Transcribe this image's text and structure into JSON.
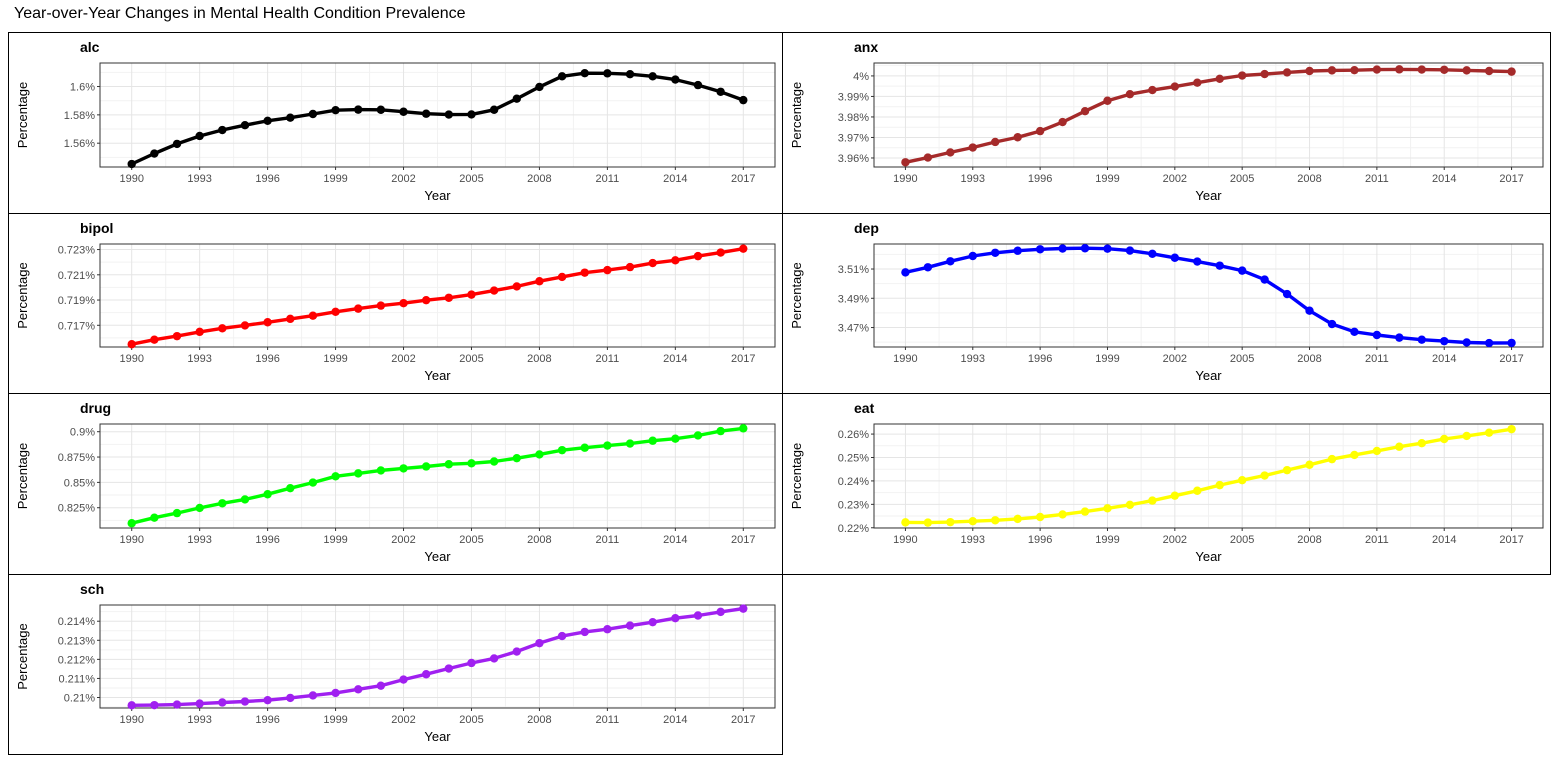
{
  "title": "Year-over-Year Changes in Mental Health Condition Prevalence",
  "chart_data": [
    {
      "type": "line",
      "name": "alc",
      "color": "#000000",
      "x": [
        1990,
        1991,
        1992,
        1993,
        1994,
        1995,
        1996,
        1997,
        1998,
        1999,
        2000,
        2001,
        2002,
        2003,
        2004,
        2005,
        2006,
        2007,
        2008,
        2009,
        2010,
        2011,
        2012,
        2013,
        2014,
        2015,
        2016,
        2017
      ],
      "values": [
        1.5453,
        1.5527,
        1.5595,
        1.5651,
        1.5693,
        1.5727,
        1.5758,
        1.578,
        1.5806,
        1.5833,
        1.5837,
        1.5836,
        1.5822,
        1.5808,
        1.5802,
        1.5803,
        1.5836,
        1.5914,
        1.5997,
        1.6072,
        1.6094,
        1.6093,
        1.6087,
        1.6072,
        1.6049,
        1.601,
        1.5963,
        1.5904
      ],
      "xlabel": "Year",
      "ylabel": "Percentage",
      "xticks": [
        1990,
        1993,
        1996,
        1999,
        2002,
        2005,
        2008,
        2011,
        2014,
        2017
      ],
      "yticks": [
        1.56,
        1.58,
        1.6
      ],
      "ytick_labels": [
        "1.56%",
        "1.58%",
        "1.6%"
      ],
      "ylim": [
        1.5432,
        1.6166
      ]
    },
    {
      "type": "line",
      "name": "anx",
      "color": "#a52a2a",
      "x": [
        1990,
        1991,
        1992,
        1993,
        1994,
        1995,
        1996,
        1997,
        1998,
        1999,
        2000,
        2001,
        2002,
        2003,
        2004,
        2005,
        2006,
        2007,
        2008,
        2009,
        2010,
        2011,
        2012,
        2013,
        2014,
        2015,
        2016,
        2017
      ],
      "values": [
        3.9579,
        3.9602,
        3.9627,
        3.9651,
        3.9678,
        3.9701,
        3.9731,
        3.9775,
        3.9828,
        3.9879,
        3.9911,
        3.9931,
        3.9948,
        3.9967,
        3.9986,
        4.0002,
        4.0009,
        4.0017,
        4.0024,
        4.0027,
        4.0028,
        4.0031,
        4.0032,
        4.0031,
        4.003,
        4.0027,
        4.0024,
        4.0021
      ],
      "xlabel": "Year",
      "ylabel": "Percentage",
      "xticks": [
        1990,
        1993,
        1996,
        1999,
        2002,
        2005,
        2008,
        2011,
        2014,
        2017
      ],
      "yticks": [
        3.96,
        3.97,
        3.98,
        3.99,
        4.0
      ],
      "ytick_labels": [
        "3.96%",
        "3.97%",
        "3.98%",
        "3.99%",
        "4%"
      ],
      "ylim": [
        3.9556,
        4.0063
      ]
    },
    {
      "type": "line",
      "name": "bipol",
      "color": "#ff0000",
      "x": [
        1990,
        1991,
        1992,
        1993,
        1994,
        1995,
        1996,
        1997,
        1998,
        1999,
        2000,
        2001,
        2002,
        2003,
        2004,
        2005,
        2006,
        2007,
        2008,
        2009,
        2010,
        2011,
        2012,
        2013,
        2014,
        2015,
        2016,
        2017
      ],
      "values": [
        0.7155,
        0.71586,
        0.71614,
        0.71648,
        0.71676,
        0.71699,
        0.71724,
        0.71751,
        0.71776,
        0.71807,
        0.71832,
        0.71856,
        0.71875,
        0.71899,
        0.71918,
        0.71943,
        0.71975,
        0.72008,
        0.72049,
        0.72083,
        0.72117,
        0.72137,
        0.72161,
        0.72193,
        0.72215,
        0.72248,
        0.72276,
        0.72307
      ],
      "xlabel": "Year",
      "ylabel": "Percentage",
      "xticks": [
        1990,
        1993,
        1996,
        1999,
        2002,
        2005,
        2008,
        2011,
        2014,
        2017
      ],
      "yticks": [
        0.717,
        0.719,
        0.721,
        0.723
      ],
      "ytick_labels": [
        "0.717%",
        "0.719%",
        "0.721%",
        "0.723%"
      ],
      "ylim": [
        0.71528,
        0.72344
      ]
    },
    {
      "type": "line",
      "name": "dep",
      "color": "#0000ff",
      "x": [
        1990,
        1991,
        1992,
        1993,
        1994,
        1995,
        1996,
        1997,
        1998,
        1999,
        2000,
        2001,
        2002,
        2003,
        2004,
        2005,
        2006,
        2007,
        2008,
        2009,
        2010,
        2011,
        2012,
        2013,
        2014,
        2015,
        2016,
        2017
      ],
      "values": [
        3.5077,
        3.5112,
        3.5153,
        3.5189,
        3.5211,
        3.5225,
        3.5235,
        3.524,
        3.5242,
        3.5239,
        3.5226,
        3.5204,
        3.5177,
        3.5151,
        3.5123,
        3.5089,
        3.5028,
        3.4929,
        3.4815,
        3.4724,
        3.4671,
        3.4649,
        3.4631,
        3.4617,
        3.4607,
        3.4598,
        3.4594,
        3.4595
      ],
      "xlabel": "Year",
      "ylabel": "Percentage",
      "xticks": [
        1990,
        1993,
        1996,
        1999,
        2002,
        2005,
        2008,
        2011,
        2014,
        2017
      ],
      "yticks": [
        3.47,
        3.49,
        3.51
      ],
      "ytick_labels": [
        "3.47%",
        "3.49%",
        "3.51%"
      ],
      "ylim": [
        3.4567,
        3.5271
      ]
    },
    {
      "type": "line",
      "name": "drug",
      "color": "#00ff00",
      "x": [
        1990,
        1991,
        1992,
        1993,
        1994,
        1995,
        1996,
        1997,
        1998,
        1999,
        2000,
        2001,
        2002,
        2003,
        2004,
        2005,
        2006,
        2007,
        2008,
        2009,
        2010,
        2011,
        2012,
        2013,
        2014,
        2015,
        2016,
        2017
      ],
      "values": [
        0.8097,
        0.8152,
        0.8197,
        0.8248,
        0.8294,
        0.8332,
        0.8383,
        0.8443,
        0.8498,
        0.856,
        0.8589,
        0.8618,
        0.8638,
        0.8657,
        0.8679,
        0.8688,
        0.8706,
        0.8739,
        0.8776,
        0.8818,
        0.8842,
        0.8863,
        0.8883,
        0.8911,
        0.8931,
        0.8963,
        0.9006,
        0.9033
      ],
      "xlabel": "Year",
      "ylabel": "Percentage",
      "xticks": [
        1990,
        1993,
        1996,
        1999,
        2002,
        2005,
        2008,
        2011,
        2014,
        2017
      ],
      "yticks": [
        0.825,
        0.85,
        0.875,
        0.9
      ],
      "ytick_labels": [
        "0.825%",
        "0.85%",
        "0.875%",
        "0.9%"
      ],
      "ylim": [
        0.805,
        0.9076
      ]
    },
    {
      "type": "line",
      "name": "eat",
      "color": "#ffff00",
      "x": [
        1990,
        1991,
        1992,
        1993,
        1994,
        1995,
        1996,
        1997,
        1998,
        1999,
        2000,
        2001,
        2002,
        2003,
        2004,
        2005,
        2006,
        2007,
        2008,
        2009,
        2010,
        2011,
        2012,
        2013,
        2014,
        2015,
        2016,
        2017
      ],
      "values": [
        0.2223,
        0.2222,
        0.2224,
        0.2228,
        0.2232,
        0.2238,
        0.2246,
        0.2257,
        0.2269,
        0.2283,
        0.2298,
        0.2316,
        0.2337,
        0.2358,
        0.2382,
        0.2403,
        0.2423,
        0.2446,
        0.2469,
        0.2493,
        0.2511,
        0.2528,
        0.2546,
        0.2561,
        0.2579,
        0.2592,
        0.2606,
        0.2621
      ],
      "xlabel": "Year",
      "ylabel": "Percentage",
      "xticks": [
        1990,
        1993,
        1996,
        1999,
        2002,
        2005,
        2008,
        2011,
        2014,
        2017
      ],
      "yticks": [
        0.22,
        0.23,
        0.24,
        0.25,
        0.26
      ],
      "ytick_labels": [
        "0.22%",
        "0.23%",
        "0.24%",
        "0.25%",
        "0.26%"
      ],
      "ylim": [
        0.2199,
        0.2643
      ]
    },
    {
      "type": "line",
      "name": "sch",
      "color": "#a020f0",
      "x": [
        1990,
        1991,
        1992,
        1993,
        1994,
        1995,
        1996,
        1997,
        1998,
        1999,
        2000,
        2001,
        2002,
        2003,
        2004,
        2005,
        2006,
        2007,
        2008,
        2009,
        2010,
        2011,
        2012,
        2013,
        2014,
        2015,
        2016,
        2017
      ],
      "values": [
        0.20959,
        0.2096,
        0.20963,
        0.20968,
        0.20974,
        0.20979,
        0.20986,
        0.20998,
        0.21011,
        0.21024,
        0.21043,
        0.21062,
        0.21094,
        0.21122,
        0.21152,
        0.21181,
        0.21205,
        0.21241,
        0.21285,
        0.21322,
        0.21344,
        0.21358,
        0.21377,
        0.21395,
        0.21416,
        0.2143,
        0.21449,
        0.21466
      ],
      "xlabel": "Year",
      "ylabel": "Percentage",
      "xticks": [
        1990,
        1993,
        1996,
        1999,
        2002,
        2005,
        2008,
        2011,
        2014,
        2017
      ],
      "yticks": [
        0.21,
        0.211,
        0.212,
        0.213,
        0.214
      ],
      "ytick_labels": [
        "0.21%",
        "0.211%",
        "0.212%",
        "0.213%",
        "0.214%"
      ],
      "ylim": [
        0.20945,
        0.21485
      ]
    }
  ]
}
